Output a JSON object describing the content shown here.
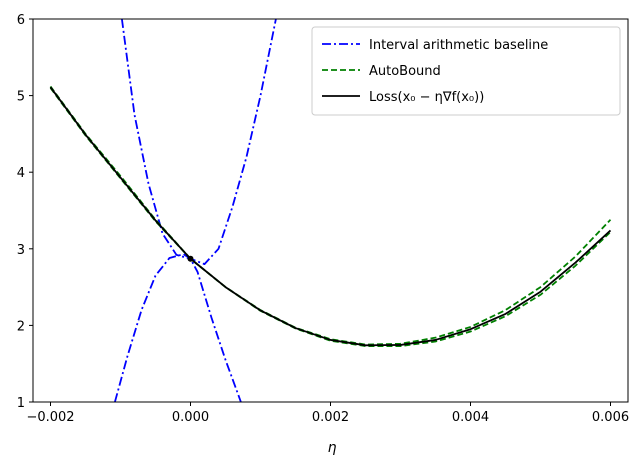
{
  "chart_data": {
    "type": "line",
    "xlabel": "η",
    "ylabel": "",
    "xlim": [
      -0.00225,
      0.00625
    ],
    "ylim": [
      1,
      6
    ],
    "xticks": [
      -0.002,
      0.0,
      0.002,
      0.004,
      0.006
    ],
    "xtick_labels": [
      "−0.002",
      "0.000",
      "0.002",
      "0.004",
      "0.006"
    ],
    "yticks": [
      1,
      2,
      3,
      4,
      5,
      6
    ],
    "ytick_labels": [
      "1",
      "2",
      "3",
      "4",
      "5",
      "6"
    ],
    "grid": false,
    "legend_position": "top-right",
    "series": [
      {
        "name": "Interval arithmetic baseline (upper)",
        "legend_label": "Interval arithmetic baseline",
        "color": "#0000ff",
        "style": "dash-dot",
        "x": [
          -0.00098,
          -0.0008,
          -0.0006,
          -0.0004,
          -0.0002,
          0.0,
          0.0002,
          0.0004,
          0.0006,
          0.0008,
          0.001,
          0.00122
        ],
        "y": [
          6.0,
          4.75,
          3.85,
          3.2,
          2.92,
          2.87,
          2.8,
          3.0,
          3.55,
          4.2,
          5.0,
          6.0
        ]
      },
      {
        "name": "Interval arithmetic baseline (lower)",
        "legend_label": "",
        "color": "#0000ff",
        "style": "dash-dot",
        "x": [
          -0.00108,
          -0.0009,
          -0.0007,
          -0.0005,
          -0.0003,
          -0.0001,
          0.0,
          0.0001,
          0.0003,
          0.0005,
          0.00072
        ],
        "y": [
          1.0,
          1.6,
          2.2,
          2.65,
          2.88,
          2.93,
          2.87,
          2.7,
          2.1,
          1.55,
          1.0
        ]
      },
      {
        "name": "AutoBound (upper)",
        "legend_label": "AutoBound",
        "color": "#008000",
        "style": "dashed",
        "x": [
          -0.002,
          -0.0015,
          -0.001,
          -0.0005,
          0.0,
          0.0005,
          0.001,
          0.0015,
          0.002,
          0.0025,
          0.003,
          0.0035,
          0.004,
          0.0045,
          0.005,
          0.0055,
          0.006
        ],
        "y": [
          5.12,
          4.5,
          3.95,
          3.38,
          2.87,
          2.5,
          2.2,
          1.97,
          1.82,
          1.75,
          1.76,
          1.84,
          1.98,
          2.2,
          2.5,
          2.9,
          3.38
        ]
      },
      {
        "name": "AutoBound (lower)",
        "legend_label": "",
        "color": "#008000",
        "style": "dashed",
        "x": [
          -0.002,
          -0.0015,
          -0.001,
          -0.0005,
          0.0,
          0.0005,
          0.001,
          0.0015,
          0.002,
          0.0025,
          0.003,
          0.0035,
          0.004,
          0.0045,
          0.005,
          0.0055,
          0.006
        ],
        "y": [
          5.1,
          4.48,
          3.92,
          3.36,
          2.87,
          2.5,
          2.19,
          1.96,
          1.8,
          1.73,
          1.73,
          1.79,
          1.92,
          2.12,
          2.4,
          2.78,
          3.22
        ]
      },
      {
        "name": "Loss(x₀ − η∇f(x₀))",
        "legend_label": "Loss(x₀ − η∇f(x₀))",
        "color": "#000000",
        "style": "solid",
        "x": [
          -0.002,
          -0.0015,
          -0.001,
          -0.0005,
          0.0,
          0.0005,
          0.001,
          0.0015,
          0.002,
          0.0025,
          0.003,
          0.0035,
          0.004,
          0.0045,
          0.005,
          0.0055,
          0.006
        ],
        "y": [
          5.11,
          4.49,
          3.93,
          3.37,
          2.87,
          2.5,
          2.195,
          1.965,
          1.81,
          1.74,
          1.745,
          1.81,
          1.95,
          2.15,
          2.44,
          2.82,
          3.24
        ]
      }
    ],
    "points": [
      {
        "x": 0.0,
        "y": 2.87,
        "color": "#000000"
      }
    ]
  }
}
